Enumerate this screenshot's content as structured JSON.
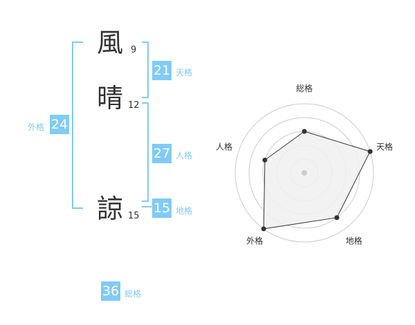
{
  "name": {
    "chars": [
      {
        "char": "風",
        "strokes": "9"
      },
      {
        "char": "晴",
        "strokes": "12"
      },
      {
        "char": "諒",
        "strokes": "15"
      }
    ]
  },
  "scores": {
    "tenkaku": {
      "value": "21",
      "label": "天格"
    },
    "jinkaku": {
      "value": "27",
      "label": "人格"
    },
    "chikaku": {
      "value": "15",
      "label": "地格"
    },
    "gaikaku": {
      "value": "24",
      "label": "外格"
    },
    "soukaku": {
      "value": "36",
      "label": "総格"
    }
  },
  "colors": {
    "accent": "#80cbf8",
    "polygon_fill": "#f0f0f0",
    "polygon_stroke": "#333333",
    "grid": "#cccccc"
  },
  "chart_data": {
    "type": "radar",
    "categories": [
      "総格",
      "天格",
      "地格",
      "外格",
      "人格"
    ],
    "values": [
      3,
      5,
      4,
      5,
      3
    ],
    "range": [
      0,
      5
    ],
    "grid": true
  }
}
